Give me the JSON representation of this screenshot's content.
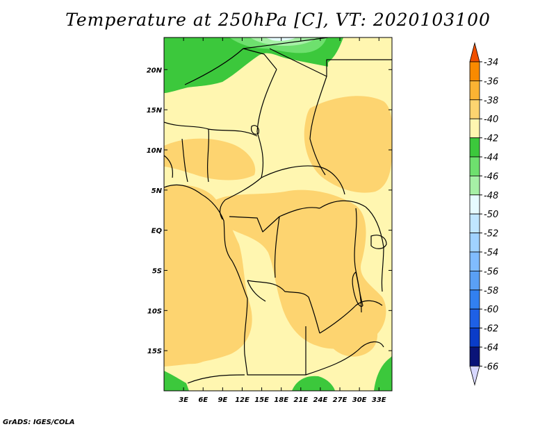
{
  "title": "Temperature at 250hPa [C], VT: 2020103100",
  "credit": "GrADS: IGES/COLA",
  "map": {
    "lon_range": [
      0,
      35
    ],
    "lat_range": [
      -20,
      24
    ],
    "lat_ticks": [
      {
        "lat": 20,
        "label": "20N"
      },
      {
        "lat": 15,
        "label": "15N"
      },
      {
        "lat": 10,
        "label": "10N"
      },
      {
        "lat": 5,
        "label": "5N"
      },
      {
        "lat": 0,
        "label": "EQ"
      },
      {
        "lat": -5,
        "label": "5S"
      },
      {
        "lat": -10,
        "label": "10S"
      },
      {
        "lat": -15,
        "label": "15S"
      }
    ],
    "lon_ticks": [
      {
        "lon": 3,
        "label": "3E"
      },
      {
        "lon": 6,
        "label": "6E"
      },
      {
        "lon": 9,
        "label": "9E"
      },
      {
        "lon": 12,
        "label": "12E"
      },
      {
        "lon": 15,
        "label": "15E"
      },
      {
        "lon": 18,
        "label": "18E"
      },
      {
        "lon": 21,
        "label": "21E"
      },
      {
        "lon": 24,
        "label": "24E"
      },
      {
        "lon": 27,
        "label": "27E"
      },
      {
        "lon": 30,
        "label": "30E"
      },
      {
        "lon": 33,
        "label": "33E"
      }
    ]
  },
  "colorbar": {
    "labels": [
      "-34",
      "-36",
      "-38",
      "-40",
      "-42",
      "-44",
      "-46",
      "-48",
      "-50",
      "-52",
      "-54",
      "-56",
      "-58",
      "-60",
      "-62",
      "-64",
      "-66"
    ],
    "colors": [
      "#f05000",
      "#f98a00",
      "#fbb333",
      "#fdd470",
      "#fff6b0",
      "#3cc83c",
      "#6ee06e",
      "#a6f0a6",
      "#e6fbff",
      "#c0e6ff",
      "#a0d2ff",
      "#80bcff",
      "#5aa0f5",
      "#3280f0",
      "#1e60e6",
      "#0a3cc8",
      "#0a1478",
      "#d8d8ff"
    ],
    "colors_note": "top triangle, 16 boxes, bottom triangle"
  },
  "palette": {
    "t40": "#fdd470",
    "t42": "#fff6b0",
    "t44": "#3cc83c",
    "t46": "#6ee06e",
    "t48": "#a6f0a6",
    "t50": "#e6fbff"
  }
}
